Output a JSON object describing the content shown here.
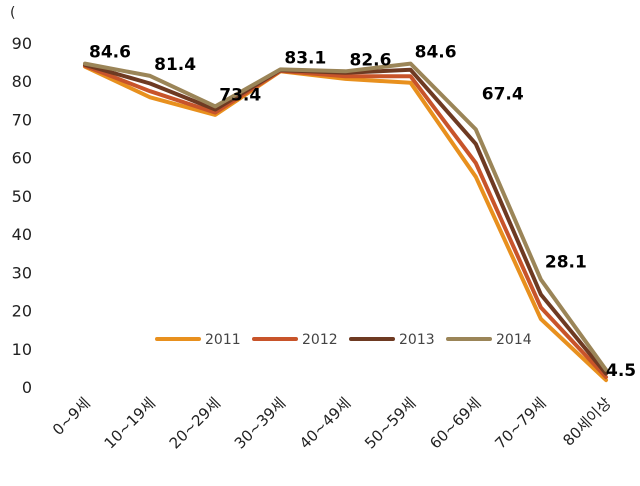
{
  "corner_mark": "(",
  "chart_data": {
    "type": "line",
    "title": "",
    "xlabel": "",
    "ylabel": "",
    "ylim": [
      0,
      90
    ],
    "yticks": [
      0,
      10,
      20,
      30,
      40,
      50,
      60,
      70,
      80,
      90
    ],
    "grid": false,
    "legend_position": "bottom-center, inside plot",
    "categories": [
      "0~9세",
      "10~19세",
      "20~29세",
      "30~39세",
      "40~49세",
      "50~59세",
      "60~69세",
      "70~79세",
      "80세이상"
    ],
    "series": [
      {
        "name": "2011",
        "color": "#E8901E",
        "values": [
          83.8,
          75.8,
          71.2,
          82.6,
          80.6,
          79.6,
          55.0,
          17.8,
          1.8
        ]
      },
      {
        "name": "2012",
        "color": "#C8542A",
        "values": [
          84.0,
          77.4,
          71.8,
          82.7,
          81.3,
          81.3,
          58.6,
          20.8,
          2.6
        ]
      },
      {
        "name": "2013",
        "color": "#6E3A22",
        "values": [
          84.3,
          79.4,
          72.6,
          82.9,
          82.2,
          83.0,
          63.6,
          24.2,
          3.5
        ]
      },
      {
        "name": "2014",
        "color": "#9B8558",
        "values": [
          84.6,
          81.4,
          73.4,
          83.1,
          82.6,
          84.6,
          67.4,
          28.1,
          4.5
        ]
      }
    ],
    "data_labels": {
      "series": "2014",
      "values": [
        "84.6",
        "81.4",
        "73.4",
        "83.1",
        "82.6",
        "84.6",
        "67.4",
        "28.1",
        "4.5"
      ]
    }
  }
}
